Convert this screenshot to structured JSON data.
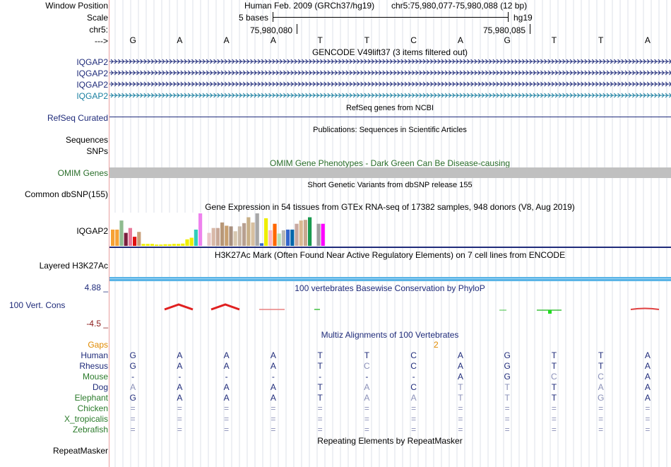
{
  "header": {
    "window_position_label": "Window Position",
    "scale_label": "Scale",
    "chr_label": "chr5:",
    "arrow_label": "--->",
    "assembly": "Human Feb. 2009 (GRCh37/hg19)",
    "position": "chr5:75,980,077-75,980,088 (12 bp)",
    "scale_text": "5 bases",
    "db": "hg19",
    "coord1": "75,980,080",
    "coord2": "75,980,085"
  },
  "bases": [
    "G",
    "A",
    "A",
    "A",
    "T",
    "T",
    "C",
    "A",
    "G",
    "T",
    "T",
    "A"
  ],
  "gencode": {
    "title": "GENCODE V49lift37 (3 items filtered out)",
    "genes": [
      "IQGAP2",
      "IQGAP2",
      "IQGAP2",
      "IQGAP2"
    ]
  },
  "refseq": {
    "label": "RefSeq Curated",
    "title": "RefSeq genes from NCBI"
  },
  "publications": {
    "label": "Sequences",
    "title": "Publications: Sequences in Scientific Articles"
  },
  "snps_label": "SNPs",
  "omim": {
    "label": "OMIM Genes",
    "title": "OMIM Gene Phenotypes - Dark Green Can Be Disease-causing"
  },
  "dbsnp": {
    "label": "Common dbSNP(155)",
    "title": "Short Genetic Variants from dbSNP release 155"
  },
  "gtex": {
    "title": "Gene Expression in 54 tissues from GTEx RNA-seq of 17382 samples, 948 donors (V8, Aug 2019)",
    "label": "IQGAP2",
    "bars": [
      {
        "v": 0.5,
        "c": "#f6a234"
      },
      {
        "v": 0.5,
        "c": "#f6a234"
      },
      {
        "v": 0.78,
        "c": "#8fbc8f"
      },
      {
        "v": 0.4,
        "c": "#7a1f3d"
      },
      {
        "v": 0.55,
        "c": "#e87a9a"
      },
      {
        "v": 0.28,
        "c": "#e01010"
      },
      {
        "v": 0.43,
        "c": "#c9a07a"
      },
      {
        "v": 0.06,
        "c": "#eeee00"
      },
      {
        "v": 0.06,
        "c": "#eeee00"
      },
      {
        "v": 0.06,
        "c": "#eeee00"
      },
      {
        "v": 0.04,
        "c": "#eeee00"
      },
      {
        "v": 0.04,
        "c": "#eeee00"
      },
      {
        "v": 0.05,
        "c": "#eeee00"
      },
      {
        "v": 0.05,
        "c": "#eeee00"
      },
      {
        "v": 0.06,
        "c": "#eeee00"
      },
      {
        "v": 0.06,
        "c": "#eeee00"
      },
      {
        "v": 0.07,
        "c": "#eeee00"
      },
      {
        "v": 0.2,
        "c": "#eeee00"
      },
      {
        "v": 0.25,
        "c": "#eeee00"
      },
      {
        "v": 0.5,
        "c": "#33ccbb"
      },
      {
        "v": 1.0,
        "c": "#ee82ee"
      },
      {
        "v": 0.1,
        "c": "#ffffff"
      },
      {
        "v": 0.4,
        "c": "#e8c8c8"
      },
      {
        "v": 0.55,
        "c": "#d8b8a8"
      },
      {
        "v": 0.55,
        "c": "#c8a898"
      },
      {
        "v": 0.72,
        "c": "#b89878"
      },
      {
        "v": 0.62,
        "c": "#c8a070"
      },
      {
        "v": 0.6,
        "c": "#a89080"
      },
      {
        "v": 0.45,
        "c": "#d8c8b0"
      },
      {
        "v": 0.6,
        "c": "#c8b8a8"
      },
      {
        "v": 0.7,
        "c": "#b8a090"
      },
      {
        "v": 0.88,
        "c": "#c8b088"
      },
      {
        "v": 0.72,
        "c": "#d8c0a0"
      },
      {
        "v": 1.0,
        "c": "#a8a8a8"
      },
      {
        "v": 0.08,
        "c": "#3366cc"
      },
      {
        "v": 0.85,
        "c": "#eeee00"
      },
      {
        "v": 0.48,
        "c": "#ffb6c1"
      },
      {
        "v": 0.68,
        "c": "#ff6600"
      },
      {
        "v": 0.38,
        "c": "#b8e0b8"
      },
      {
        "v": 0.48,
        "c": "#b8b8b8"
      },
      {
        "v": 0.5,
        "c": "#3366cc"
      },
      {
        "v": 0.5,
        "c": "#0066aa"
      },
      {
        "v": 0.68,
        "c": "#c8a8a0"
      },
      {
        "v": 0.78,
        "c": "#d8b890"
      },
      {
        "v": 0.8,
        "c": "#c8a890"
      },
      {
        "v": 0.88,
        "c": "#1a9a50"
      },
      {
        "v": 0.08,
        "c": "#ffffff"
      },
      {
        "v": 0.68,
        "c": "#a0a0a0"
      },
      {
        "v": 0.68,
        "c": "#ff00ff"
      }
    ]
  },
  "h3k27ac": {
    "label": "Layered H3K27Ac",
    "title": "H3K27Ac Mark (Often Found Near Active Regulatory Elements) on 7 cell lines from ENCODE"
  },
  "phylop": {
    "label": "100 Vert. Cons",
    "max": "4.88 _",
    "min": "-4.5 _",
    "title": "100 vertebrates Basewise Conservation by PhyloP"
  },
  "multiz": {
    "title": "Multiz Alignments of 100 Vertebrates",
    "gaps_label": "Gaps",
    "gap_count": "2",
    "species": [
      {
        "name": "Human",
        "color": "#1f2b7a",
        "seq": [
          "G",
          "A",
          "A",
          "A",
          "T",
          "T",
          "C",
          "A",
          "G",
          "T",
          "T",
          "A"
        ],
        "dim": [
          0,
          0,
          0,
          0,
          0,
          0,
          0,
          0,
          0,
          0,
          0,
          0
        ]
      },
      {
        "name": "Rhesus",
        "color": "#1f2b7a",
        "seq": [
          "G",
          "A",
          "A",
          "A",
          "T",
          "C",
          "C",
          "A",
          "G",
          "T",
          "T",
          "A"
        ],
        "dim": [
          0,
          0,
          0,
          0,
          0,
          1,
          0,
          0,
          0,
          0,
          0,
          0
        ]
      },
      {
        "name": "Mouse",
        "color": "#2a7a2a",
        "seq": [
          "-",
          "-",
          "-",
          "-",
          "-",
          "-",
          "-",
          "A",
          "G",
          "C",
          "C",
          "A"
        ],
        "dim": [
          0,
          0,
          0,
          0,
          0,
          0,
          0,
          0,
          0,
          1,
          1,
          0
        ]
      },
      {
        "name": "Dog",
        "color": "#1f2b7a",
        "seq": [
          "A",
          "A",
          "A",
          "A",
          "T",
          "A",
          "C",
          "T",
          "T",
          "T",
          "A",
          "A"
        ],
        "dim": [
          1,
          0,
          0,
          0,
          0,
          1,
          0,
          1,
          1,
          0,
          1,
          0
        ]
      },
      {
        "name": "Elephant",
        "color": "#2a7a2a",
        "seq": [
          "G",
          "A",
          "A",
          "A",
          "T",
          "A",
          "A",
          "T",
          "T",
          "T",
          "G",
          "A"
        ],
        "dim": [
          0,
          0,
          0,
          0,
          0,
          1,
          1,
          1,
          1,
          0,
          1,
          0
        ]
      },
      {
        "name": "Chicken",
        "color": "#2a7a2a",
        "seq": [
          "=",
          "=",
          "=",
          "=",
          "=",
          "=",
          "=",
          "=",
          "=",
          "=",
          "=",
          "="
        ],
        "dim": [
          1,
          1,
          1,
          1,
          1,
          1,
          1,
          1,
          1,
          1,
          1,
          1
        ]
      },
      {
        "name": "X_tropicalis",
        "color": "#2a7a2a",
        "seq": [
          "=",
          "=",
          "=",
          "=",
          "=",
          "=",
          "=",
          "=",
          "=",
          "=",
          "=",
          "="
        ],
        "dim": [
          1,
          1,
          1,
          1,
          1,
          1,
          1,
          1,
          1,
          1,
          1,
          1
        ]
      },
      {
        "name": "Zebrafish",
        "color": "#2a7a2a",
        "seq": [
          "=",
          "=",
          "=",
          "=",
          "=",
          "=",
          "=",
          "=",
          "=",
          "=",
          "=",
          "="
        ],
        "dim": [
          1,
          1,
          1,
          1,
          1,
          1,
          1,
          1,
          1,
          1,
          1,
          1
        ]
      }
    ]
  },
  "repeatmasker": {
    "label": "RepeatMasker",
    "title": "Repeating Elements by RepeatMasker"
  },
  "colors": {
    "navy": "#1f2b7a",
    "teal": "#1a7fa0",
    "omim_green": "#2a6e2a",
    "gray_band": "#c0c0c0",
    "h3k27ac_band": "#5ab4e6",
    "gap_orange": "#e08a00",
    "phylop_max": "#1f2b7a",
    "phylop_min": "#8b1a1a"
  }
}
